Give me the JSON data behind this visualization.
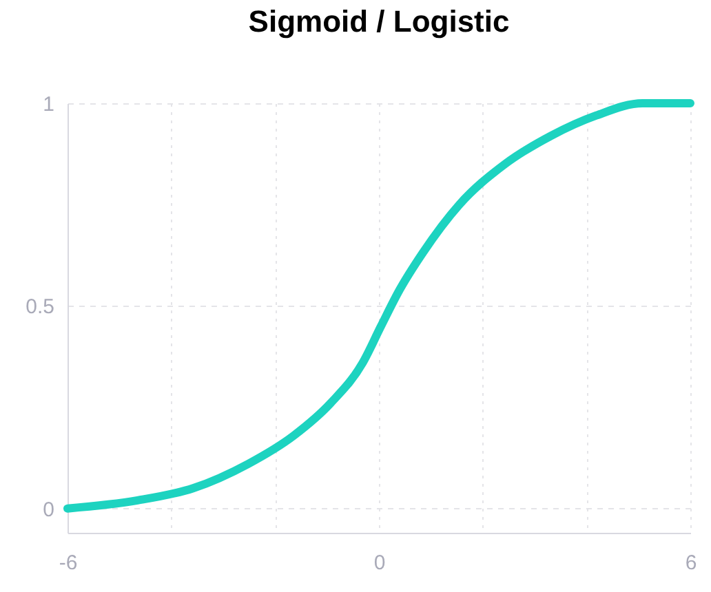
{
  "chart_data": {
    "type": "line",
    "title": "Sigmoid / Logistic",
    "x": [
      -6,
      -4.65,
      -3.58,
      -2.52,
      -1.64,
      -0.93,
      -0.31,
      0.04,
      0.4,
      0.84,
      1.55,
      2.43,
      3.32,
      4.19,
      5.08,
      6
    ],
    "series": [
      {
        "color": "#1dd3c0",
        "values": [
          0,
          0.02,
          0.05,
          0.11,
          0.18,
          0.26,
          0.36,
          0.45,
          0.54,
          0.63,
          0.75,
          0.85,
          0.92,
          0.97,
          1,
          1
        ]
      }
    ],
    "xlim": [
      -6,
      6
    ],
    "ylim": [
      -0.06,
      1
    ],
    "xticks": [
      -6,
      {
        "value": -4,
        "label": null
      },
      {
        "value": -2,
        "label": null
      },
      0,
      {
        "value": 2,
        "label": null
      },
      {
        "value": 4,
        "label": null
      },
      6
    ],
    "yticks": [
      0,
      0.5,
      1
    ],
    "grid": true,
    "marker": "none",
    "line_style": "solid"
  }
}
